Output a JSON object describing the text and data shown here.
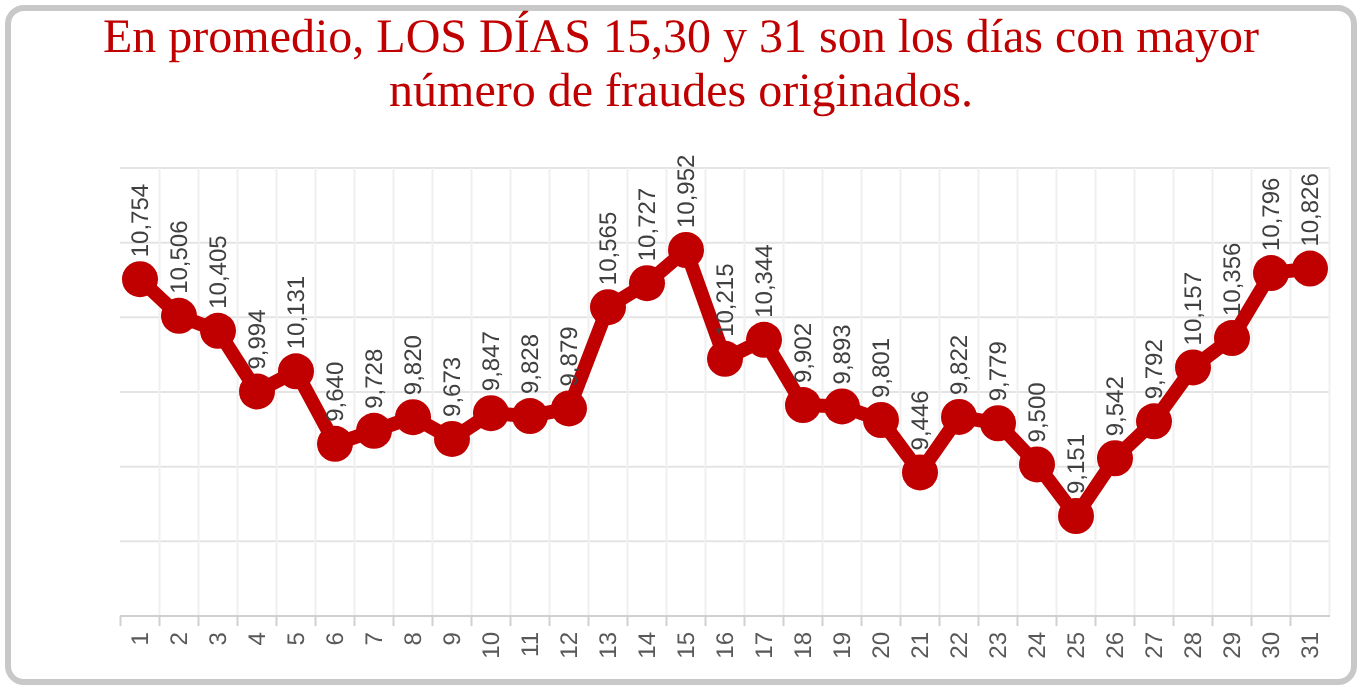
{
  "chart_data": {
    "type": "line",
    "title": "En promedio, LOS DÍAS 15,30 y 31 son los días con mayor número de fraudes originados.",
    "categories": [
      "1",
      "2",
      "3",
      "4",
      "5",
      "6",
      "7",
      "8",
      "9",
      "10",
      "11",
      "12",
      "13",
      "14",
      "15",
      "16",
      "17",
      "18",
      "19",
      "20",
      "21",
      "22",
      "23",
      "24",
      "25",
      "26",
      "27",
      "28",
      "29",
      "30",
      "31"
    ],
    "series": [
      {
        "color": "#c00000",
        "values": [
          10754,
          10506,
          10405,
          9994,
          10131,
          9640,
          9728,
          9820,
          9673,
          9847,
          9828,
          9879,
          10565,
          10727,
          10952,
          10215,
          10344,
          9902,
          9893,
          9801,
          9446,
          9822,
          9779,
          9500,
          9151,
          9542,
          9792,
          10157,
          10356,
          10796,
          10826
        ],
        "value_labels": [
          "10,754",
          "10,506",
          "10,405",
          "9,994",
          "10,131",
          "9,640",
          "9,728",
          "9,820",
          "9,673",
          "9,847",
          "9,828",
          "9,879",
          "10,565",
          "10,727",
          "10,952",
          "10,215",
          "10,344",
          "9,902",
          "9,893",
          "9,801",
          "9,446",
          "9,822",
          "9,779",
          "9,500",
          "9,151",
          "9,542",
          "9,792",
          "10,157",
          "10,356",
          "10,796",
          "10,826"
        ]
      }
    ],
    "tick_labels": "x",
    "grid": true,
    "marker": "circle",
    "line_style": "solid"
  }
}
